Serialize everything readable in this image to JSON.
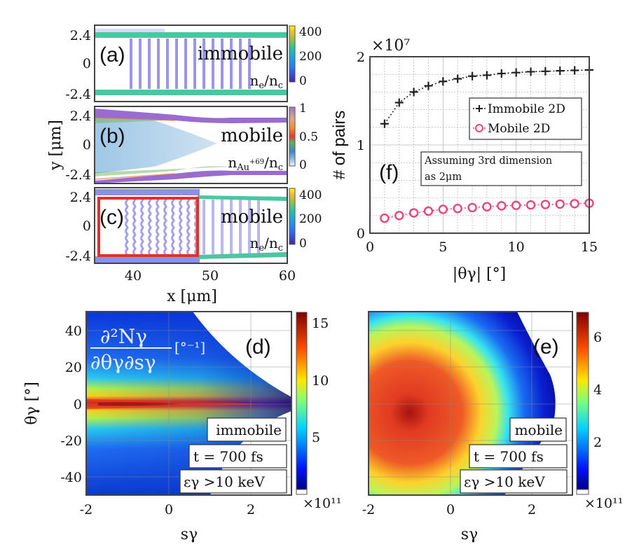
{
  "figure": {
    "top_left": {
      "shared_ylabel": "y [μm]",
      "xlabel": "x [μm]",
      "yticks": [
        "2.4",
        "0",
        "-2.4"
      ],
      "xticks": [
        "40",
        "50",
        "60"
      ],
      "x_range": [
        35,
        60
      ],
      "y_range": [
        -2.6,
        2.6
      ],
      "panels": [
        {
          "tag": "(a)",
          "label": "immobile",
          "quantity": "n_e/n_c",
          "quantity_main": "n",
          "quantity_sub": "e",
          "quantity_tail": "/n",
          "quantity_tail_sub": "c",
          "colorbar": {
            "ticks": [
              "400",
              "200",
              "0"
            ],
            "range": [
              0,
              480
            ],
            "colormap": "parula"
          }
        },
        {
          "tag": "(b)",
          "label": "mobile",
          "quantity": "n_Au+69/n_c",
          "quantity_main": "n",
          "quantity_sub": "Au",
          "quantity_sup": "+69",
          "quantity_tail": "/n",
          "quantity_tail_sub": "c",
          "colorbar": {
            "ticks": [
              "1",
              "0.5",
              "0"
            ],
            "range": [
              0,
              1
            ],
            "colormap": "custom-purple"
          }
        },
        {
          "tag": "(c)",
          "label": "mobile",
          "quantity": "n_e/n_c",
          "quantity_main": "n",
          "quantity_sub": "e",
          "quantity_tail": "/n",
          "quantity_tail_sub": "c",
          "colorbar": {
            "ticks": [
              "400",
              "200",
              "0"
            ],
            "range": [
              0,
              480
            ],
            "colormap": "parula"
          },
          "highlight_box": {
            "color": "#e0322a",
            "x_range": [
              35.6,
              48.3
            ],
            "y_range": [
              -2.4,
              2.4
            ]
          }
        }
      ]
    },
    "panel_d": {
      "tag": "(d)",
      "formula_numerator": "∂²Nγ",
      "formula_denominator": "∂θγ∂sγ",
      "formula_unit": "[°⁻¹]",
      "labels": [
        "immobile",
        "t = 700 fs",
        "εγ >10 keV"
      ],
      "xlabel": "sγ",
      "ylabel": "θγ [°]",
      "xticks": [
        "-2",
        "0",
        "2"
      ],
      "yticks": [
        "40",
        "20",
        "0",
        "-20",
        "-40"
      ],
      "x_range": [
        -2,
        3
      ],
      "y_range": [
        -50,
        50
      ],
      "colorbar": {
        "ticks": [
          "15",
          "10",
          "5"
        ],
        "range": [
          0,
          16.5
        ],
        "multiplier": "×10¹¹",
        "colormap": "jet"
      }
    },
    "panel_e": {
      "tag": "(e)",
      "labels": [
        "mobile",
        "t = 700 fs",
        "εγ >10 keV"
      ],
      "xlabel": "sγ",
      "xticks": [
        "-2",
        "0",
        "2"
      ],
      "x_range": [
        -2,
        3
      ],
      "y_range": [
        -50,
        50
      ],
      "colorbar": {
        "ticks": [
          "6",
          "4",
          "2"
        ],
        "range": [
          0,
          7
        ],
        "multiplier": "×10¹¹",
        "colormap": "jet"
      }
    }
  },
  "chart_data": {
    "type": "line",
    "panel_tag": "(f)",
    "title": "",
    "multiplier": "×10⁷",
    "xlabel": "|θγ| [°]",
    "ylabel": "# of pairs",
    "xlim": [
      0,
      15
    ],
    "ylim": [
      0,
      2
    ],
    "xticks": [
      "0",
      "5",
      "10",
      "15"
    ],
    "yticks": [
      "0",
      "1",
      "2"
    ],
    "grid": true,
    "legend_position": "upper-right",
    "annotation": [
      "Assuming 3rd dimension",
      "as 2μm"
    ],
    "x": [
      1,
      2,
      3,
      4,
      5,
      6,
      7,
      8,
      9,
      10,
      11,
      12,
      13,
      14,
      15
    ],
    "series": [
      {
        "name": "Immobile 2D",
        "marker": "plus",
        "color": "#222222",
        "values": [
          1.24,
          1.48,
          1.6,
          1.67,
          1.72,
          1.75,
          1.78,
          1.79,
          1.81,
          1.82,
          1.83,
          1.835,
          1.84,
          1.845,
          1.85
        ]
      },
      {
        "name": "Mobile 2D",
        "marker": "circle",
        "color": "#e8457b",
        "values": [
          0.17,
          0.2,
          0.23,
          0.25,
          0.27,
          0.28,
          0.29,
          0.3,
          0.31,
          0.315,
          0.32,
          0.325,
          0.33,
          0.335,
          0.34
        ]
      }
    ]
  }
}
